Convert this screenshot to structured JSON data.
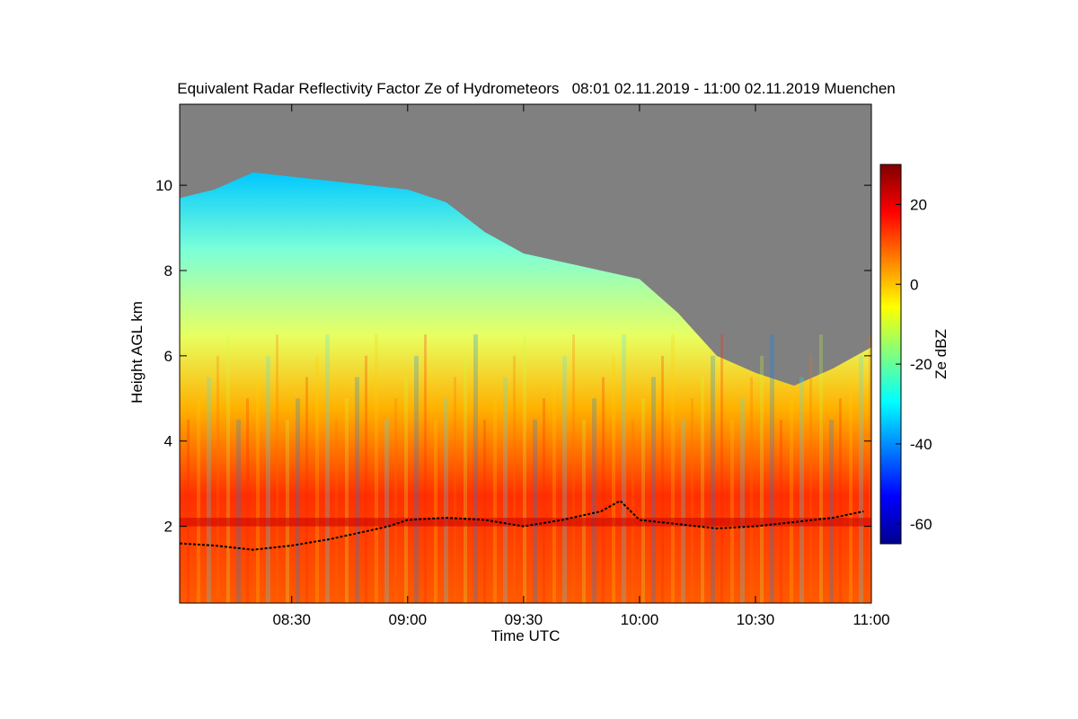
{
  "chart_data": {
    "type": "heatmap",
    "title": "Equivalent Radar Reflectivity Factor Ze of Hydrometeors   08:01 02.11.2019 - 11:00 02.11.2019 Muenchen",
    "xlabel": "Time UTC",
    "ylabel": "Height AGL km",
    "xlim": [
      "08:01",
      "11:00"
    ],
    "ylim": [
      0.2,
      11.9
    ],
    "x_ticks": [
      "08:30",
      "09:00",
      "09:30",
      "10:00",
      "10:30",
      "11:00"
    ],
    "y_ticks": [
      2,
      4,
      6,
      8,
      10
    ],
    "colorbar": {
      "label": "Ze dBZ",
      "range": [
        -65,
        30
      ],
      "ticks": [
        -60,
        -40,
        -20,
        0,
        20
      ],
      "colormap": "jet"
    },
    "no_signal_color": "#808080",
    "cloud_top_km": [
      {
        "t": "08:01",
        "h": 9.7
      },
      {
        "t": "08:10",
        "h": 9.9
      },
      {
        "t": "08:20",
        "h": 10.3
      },
      {
        "t": "08:30",
        "h": 10.2
      },
      {
        "t": "08:40",
        "h": 10.1
      },
      {
        "t": "08:50",
        "h": 10.0
      },
      {
        "t": "09:00",
        "h": 9.9
      },
      {
        "t": "09:10",
        "h": 9.6
      },
      {
        "t": "09:20",
        "h": 8.9
      },
      {
        "t": "09:30",
        "h": 8.4
      },
      {
        "t": "09:40",
        "h": 8.2
      },
      {
        "t": "09:50",
        "h": 8.0
      },
      {
        "t": "10:00",
        "h": 7.8
      },
      {
        "t": "10:10",
        "h": 7.0
      },
      {
        "t": "10:20",
        "h": 6.0
      },
      {
        "t": "10:30",
        "h": 5.6
      },
      {
        "t": "10:40",
        "h": 5.3
      },
      {
        "t": "10:50",
        "h": 5.7
      },
      {
        "t": "11:00",
        "h": 6.2
      }
    ],
    "melting_layer_km": [
      {
        "t": "08:01",
        "h": 1.6
      },
      {
        "t": "08:10",
        "h": 1.55
      },
      {
        "t": "08:20",
        "h": 1.45
      },
      {
        "t": "08:30",
        "h": 1.55
      },
      {
        "t": "08:40",
        "h": 1.7
      },
      {
        "t": "08:50",
        "h": 1.9
      },
      {
        "t": "08:55",
        "h": 2.0
      },
      {
        "t": "09:00",
        "h": 2.15
      },
      {
        "t": "09:10",
        "h": 2.2
      },
      {
        "t": "09:20",
        "h": 2.15
      },
      {
        "t": "09:30",
        "h": 2.0
      },
      {
        "t": "09:40",
        "h": 2.15
      },
      {
        "t": "09:50",
        "h": 2.35
      },
      {
        "t": "09:55",
        "h": 2.6
      },
      {
        "t": "10:00",
        "h": 2.15
      },
      {
        "t": "10:10",
        "h": 2.05
      },
      {
        "t": "10:20",
        "h": 1.95
      },
      {
        "t": "10:30",
        "h": 2.0
      },
      {
        "t": "10:40",
        "h": 2.1
      },
      {
        "t": "10:50",
        "h": 2.2
      },
      {
        "t": "10:58",
        "h": 2.35
      }
    ],
    "bright_band_km": 2.1
  }
}
